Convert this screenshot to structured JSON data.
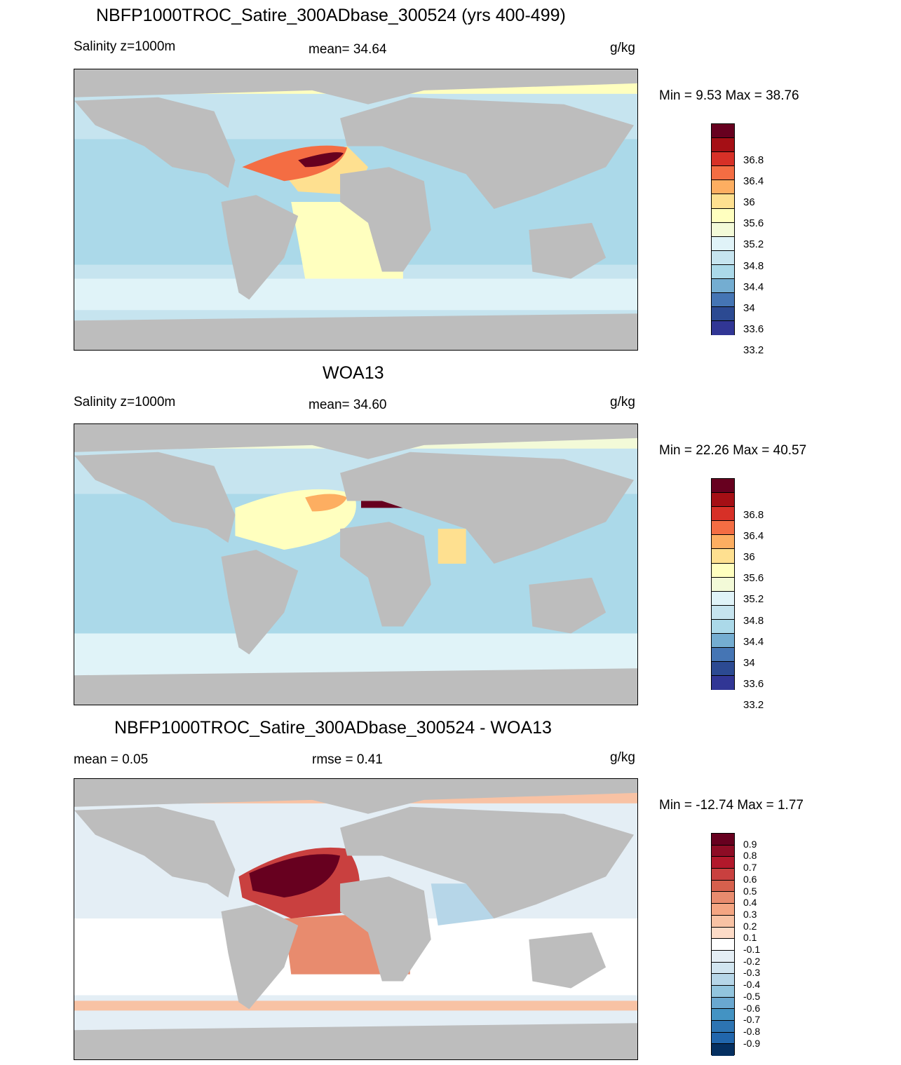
{
  "panel1": {
    "title": "NBFP1000TROC_Satire_300ADbase_300524 (yrs 400-499)",
    "left": "Salinity z=1000m",
    "center": "mean=  34.64",
    "units": "g/kg",
    "minmax": "Min =   9.53 Max =  38.76"
  },
  "panel2": {
    "title": "WOA13",
    "left": "Salinity z=1000m",
    "center": "mean=  34.60",
    "units": "g/kg",
    "minmax": "Min =  22.26 Max =  40.57"
  },
  "panel3": {
    "title": "NBFP1000TROC_Satire_300ADbase_300524 - WOA13",
    "left": "mean =   0.05",
    "center": "rmse =   0.41",
    "units": "g/kg",
    "minmax": "Min = -12.74 Max =   1.77"
  },
  "salinity_colorbar": {
    "labels": [
      "36.8",
      "36.4",
      "36",
      "35.6",
      "35.2",
      "34.8",
      "34.4",
      "34",
      "33.6",
      "33.2"
    ],
    "colors": [
      "#67001f",
      "#a50f15",
      "#d73027",
      "#f46d43",
      "#fdae61",
      "#fee090",
      "#ffffbf",
      "#f3fad8",
      "#e0f3f8",
      "#c6e4ef",
      "#abd9e9",
      "#74add1",
      "#4575b4",
      "#2c4a92",
      "#313695"
    ]
  },
  "diff_colorbar": {
    "labels": [
      "0.9",
      "0.8",
      "0.7",
      "0.6",
      "0.5",
      "0.4",
      "0.3",
      "0.2",
      "0.1",
      "-0.1",
      "-0.2",
      "-0.3",
      "-0.4",
      "-0.5",
      "-0.6",
      "-0.7",
      "-0.8",
      "-0.9"
    ],
    "colors": [
      "#67001f",
      "#8e0c25",
      "#b2182b",
      "#c9403f",
      "#d6604d",
      "#e88b6e",
      "#f4a582",
      "#f8c2a4",
      "#fddbc7",
      "#ffffff",
      "#e4eef5",
      "#d1e5f0",
      "#b6d6e8",
      "#92c5de",
      "#6aa8d0",
      "#4393c3",
      "#2d74b2",
      "#2166ac",
      "#053061"
    ]
  },
  "map_colors": {
    "land": "#bdbdbd",
    "coast": "#000000"
  }
}
